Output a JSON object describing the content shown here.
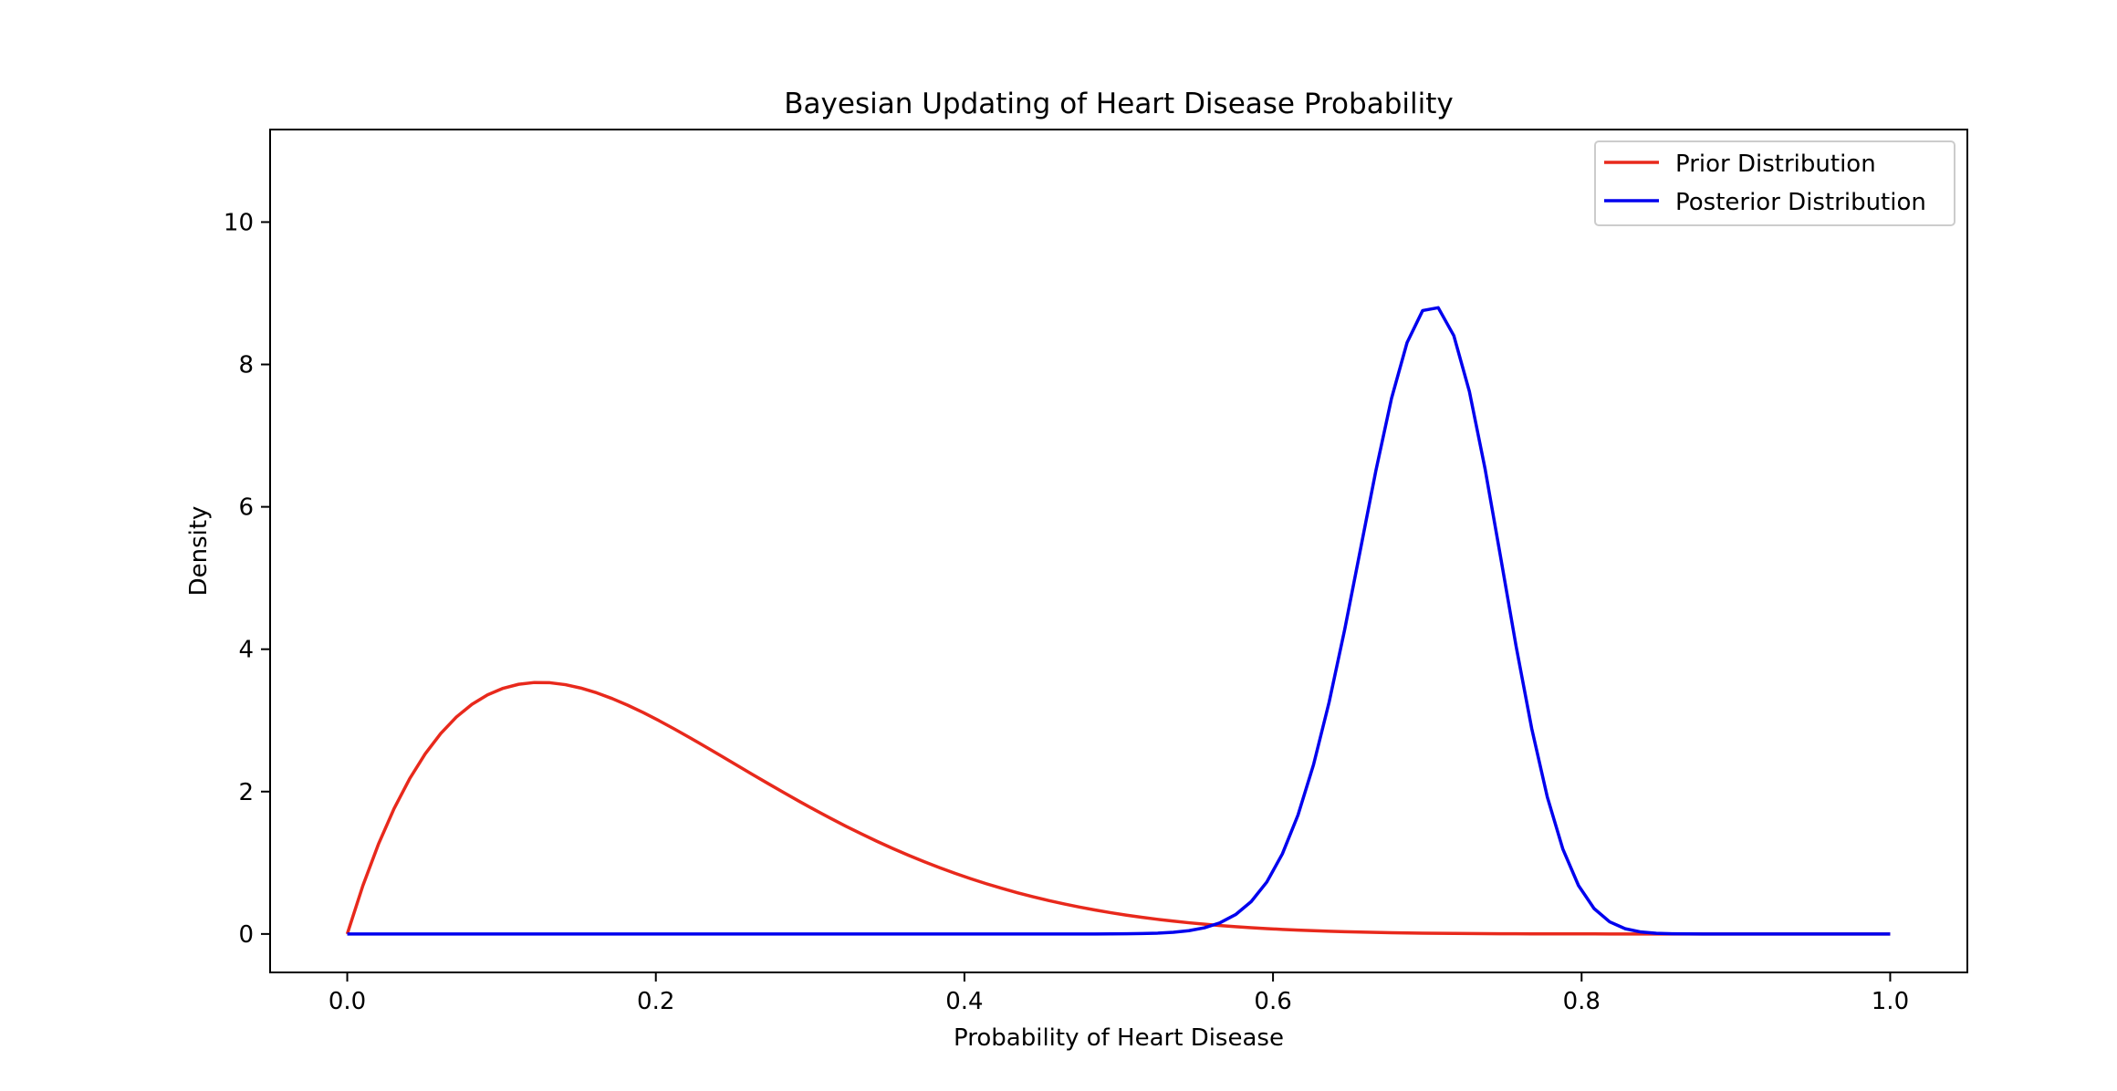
{
  "chart_data": {
    "type": "line",
    "title": "Bayesian Updating of Heart Disease Probability",
    "xlabel": "Probability of Heart Disease",
    "ylabel": "Density",
    "xlim": [
      -0.05,
      1.05
    ],
    "ylim": [
      -0.54,
      11.3
    ],
    "xticks": [
      0.0,
      0.2,
      0.4,
      0.6,
      0.8,
      1.0
    ],
    "xtick_labels": [
      "0.0",
      "0.2",
      "0.4",
      "0.6",
      "0.8",
      "1.0"
    ],
    "yticks": [
      0,
      2,
      4,
      6,
      8,
      10
    ],
    "ytick_labels": [
      "0",
      "2",
      "4",
      "6",
      "8",
      "10"
    ],
    "grid": false,
    "legend_position": "top-right",
    "series": [
      {
        "name": "Prior Distribution",
        "color": "#e8291c",
        "dist": "beta",
        "a": 2,
        "b": 8,
        "points": 100
      },
      {
        "name": "Posterior Distribution",
        "color": "#0000ee",
        "dist": "beta",
        "a": 72,
        "b": 31,
        "points": 100
      }
    ]
  }
}
